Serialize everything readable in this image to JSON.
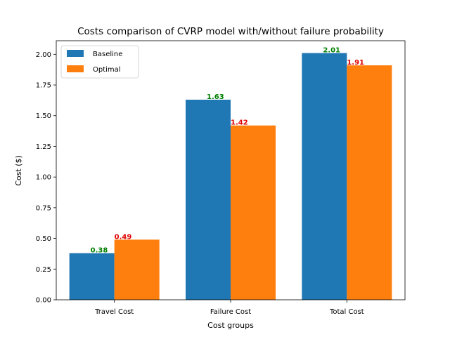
{
  "chart_data": {
    "type": "bar",
    "title": "Costs comparison of CVRP model with/without failure probability",
    "xlabel": "Cost groups",
    "ylabel": "Cost ($)",
    "categories": [
      "Travel Cost",
      "Failure Cost",
      "Total Cost"
    ],
    "series": [
      {
        "name": "Baseline",
        "values": [
          0.38,
          1.63,
          2.01
        ],
        "color": "#1f77b4",
        "label_color": "#008000",
        "labels": [
          "0.38",
          "1.63",
          "2.01"
        ]
      },
      {
        "name": "Optimal",
        "values": [
          0.49,
          1.42,
          1.91
        ],
        "color": "#ff7f0e",
        "label_color": "#e00000",
        "labels": [
          "0.49",
          "1.42",
          "1.91"
        ]
      }
    ],
    "ylim": [
      0,
      2.1105
    ],
    "yticks": [
      "0.00",
      "0.25",
      "0.50",
      "0.75",
      "1.00",
      "1.25",
      "1.50",
      "1.75",
      "2.00"
    ],
    "grid": false,
    "legend_position": "top-left"
  }
}
